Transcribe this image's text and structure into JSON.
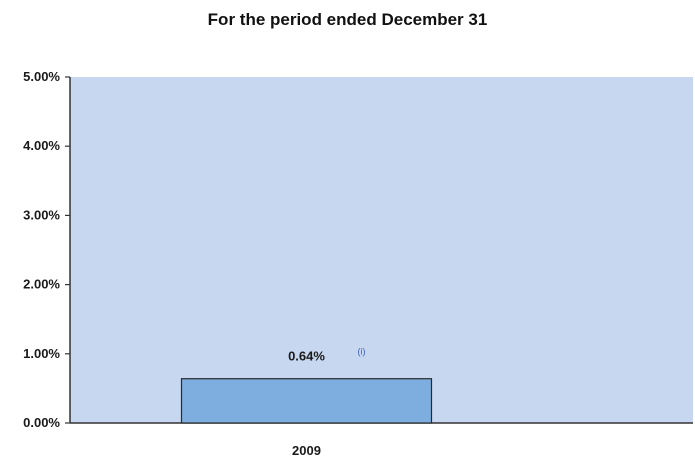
{
  "chart_data": {
    "type": "bar",
    "title": "For the period ended December 31",
    "categories": [
      "2009"
    ],
    "values": [
      0.64
    ],
    "value_labels": [
      "0.64%"
    ],
    "footnote_marker": "(i)",
    "ylim": [
      0,
      5
    ],
    "yticks": [
      0,
      1,
      2,
      3,
      4,
      5
    ],
    "ytick_labels": [
      "0.00%",
      "1.00%",
      "2.00%",
      "3.00%",
      "4.00%",
      "5.00%"
    ],
    "xlabel": "",
    "ylabel": "",
    "grid": false,
    "colors": {
      "plot_background": "#c7d7ef",
      "bar_fill": "#7eaedf",
      "bar_stroke": "#2a2a2a",
      "axis": "#333333"
    }
  }
}
